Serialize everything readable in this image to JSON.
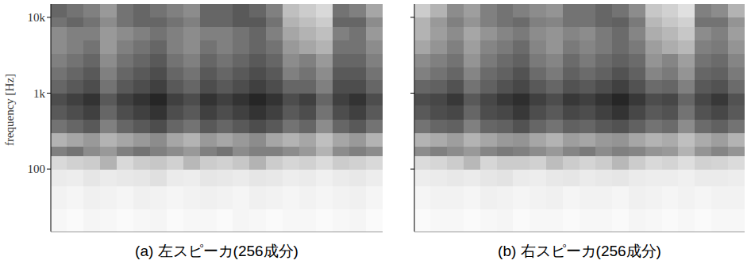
{
  "chart_data": [
    {
      "type": "heatmap",
      "title": "(a) 左スピーカ(256成分)",
      "y_label": "frequency [Hz]",
      "log": "y",
      "tick_labels": "y",
      "color": "#000000",
      "ylim": [
        15,
        15000
      ],
      "yticks": [
        100,
        {
          "value": 1000,
          "label": "1k"
        },
        {
          "value": 10000,
          "label": "10k"
        }
      ],
      "value_range": [
        0,
        1
      ],
      "y_bins": [
        15,
        30,
        60,
        100,
        150,
        200,
        300,
        450,
        700,
        1000,
        1500,
        2200,
        3300,
        5000,
        7500,
        10000,
        15000
      ],
      "cells": [
        [
          0.03,
          0.02,
          0.04,
          0.03,
          0.02,
          0.03,
          0.04,
          0.02,
          0.03,
          0.03,
          0.02,
          0.04,
          0.03,
          0.02,
          0.03,
          0.03,
          0.02,
          0.03,
          0.04,
          0.02
        ],
        [
          0.05,
          0.04,
          0.06,
          0.05,
          0.04,
          0.06,
          0.05,
          0.04,
          0.05,
          0.06,
          0.05,
          0.04,
          0.06,
          0.05,
          0.04,
          0.05,
          0.04,
          0.05,
          0.06,
          0.04
        ],
        [
          0.08,
          0.07,
          0.1,
          0.08,
          0.09,
          0.1,
          0.12,
          0.08,
          0.07,
          0.1,
          0.09,
          0.08,
          0.1,
          0.09,
          0.07,
          0.08,
          0.06,
          0.08,
          0.09,
          0.07
        ],
        [
          0.15,
          0.18,
          0.2,
          0.3,
          0.15,
          0.2,
          0.22,
          0.18,
          0.28,
          0.2,
          0.18,
          0.22,
          0.3,
          0.2,
          0.16,
          0.18,
          0.14,
          0.2,
          0.18,
          0.15
        ],
        [
          0.5,
          0.55,
          0.45,
          0.4,
          0.5,
          0.55,
          0.5,
          0.45,
          0.4,
          0.5,
          0.55,
          0.45,
          0.5,
          0.5,
          0.45,
          0.4,
          0.3,
          0.45,
          0.5,
          0.45
        ],
        [
          0.3,
          0.35,
          0.4,
          0.3,
          0.35,
          0.4,
          0.45,
          0.35,
          0.3,
          0.4,
          0.35,
          0.4,
          0.45,
          0.35,
          0.3,
          0.35,
          0.25,
          0.35,
          0.4,
          0.3
        ],
        [
          0.55,
          0.6,
          0.65,
          0.5,
          0.6,
          0.65,
          0.7,
          0.6,
          0.55,
          0.65,
          0.6,
          0.65,
          0.7,
          0.65,
          0.55,
          0.6,
          0.45,
          0.6,
          0.65,
          0.55
        ],
        [
          0.65,
          0.7,
          0.75,
          0.6,
          0.7,
          0.75,
          0.8,
          0.7,
          0.65,
          0.75,
          0.7,
          0.75,
          0.8,
          0.75,
          0.65,
          0.7,
          0.55,
          0.7,
          0.75,
          0.65
        ],
        [
          0.7,
          0.75,
          0.8,
          0.65,
          0.75,
          0.8,
          0.85,
          0.75,
          0.7,
          0.8,
          0.75,
          0.8,
          0.85,
          0.8,
          0.7,
          0.75,
          0.6,
          0.75,
          0.8,
          0.7
        ],
        [
          0.6,
          0.65,
          0.7,
          0.55,
          0.65,
          0.7,
          0.75,
          0.65,
          0.6,
          0.7,
          0.65,
          0.7,
          0.75,
          0.7,
          0.6,
          0.6,
          0.5,
          0.7,
          0.7,
          0.6
        ],
        [
          0.55,
          0.6,
          0.65,
          0.5,
          0.6,
          0.65,
          0.7,
          0.6,
          0.55,
          0.65,
          0.6,
          0.65,
          0.7,
          0.65,
          0.5,
          0.55,
          0.45,
          0.65,
          0.65,
          0.55
        ],
        [
          0.5,
          0.55,
          0.6,
          0.45,
          0.55,
          0.6,
          0.65,
          0.55,
          0.5,
          0.6,
          0.55,
          0.6,
          0.65,
          0.6,
          0.45,
          0.5,
          0.4,
          0.6,
          0.6,
          0.5
        ],
        [
          0.45,
          0.5,
          0.55,
          0.4,
          0.5,
          0.55,
          0.6,
          0.5,
          0.45,
          0.55,
          0.5,
          0.55,
          0.6,
          0.55,
          0.4,
          0.35,
          0.3,
          0.55,
          0.55,
          0.45
        ],
        [
          0.45,
          0.5,
          0.5,
          0.4,
          0.45,
          0.5,
          0.55,
          0.5,
          0.45,
          0.5,
          0.5,
          0.55,
          0.6,
          0.5,
          0.35,
          0.3,
          0.25,
          0.5,
          0.55,
          0.4
        ],
        [
          0.55,
          0.6,
          0.55,
          0.45,
          0.55,
          0.6,
          0.6,
          0.55,
          0.5,
          0.6,
          0.6,
          0.65,
          0.65,
          0.55,
          0.3,
          0.25,
          0.2,
          0.6,
          0.6,
          0.45
        ],
        [
          0.6,
          0.55,
          0.5,
          0.4,
          0.55,
          0.6,
          0.55,
          0.5,
          0.45,
          0.6,
          0.6,
          0.65,
          0.6,
          0.5,
          0.25,
          0.2,
          0.15,
          0.55,
          0.5,
          0.35
        ]
      ]
    },
    {
      "type": "heatmap",
      "title": "(b) 右スピーカ(256成分)",
      "log": "y",
      "tick_labels": false,
      "color": "#000000",
      "ylim": [
        15,
        15000
      ],
      "yticks": [
        100,
        1000,
        10000
      ],
      "value_range": [
        0,
        1
      ],
      "y_bins": [
        15,
        30,
        60,
        100,
        150,
        200,
        300,
        450,
        700,
        1000,
        1500,
        2200,
        3300,
        5000,
        7500,
        10000,
        15000
      ],
      "cells": [
        [
          0.02,
          0.03,
          0.03,
          0.02,
          0.03,
          0.04,
          0.02,
          0.03,
          0.03,
          0.02,
          0.03,
          0.03,
          0.02,
          0.04,
          0.03,
          0.02,
          0.03,
          0.02,
          0.03,
          0.03
        ],
        [
          0.04,
          0.05,
          0.05,
          0.04,
          0.06,
          0.05,
          0.04,
          0.05,
          0.06,
          0.04,
          0.05,
          0.05,
          0.04,
          0.06,
          0.05,
          0.04,
          0.05,
          0.04,
          0.05,
          0.05
        ],
        [
          0.07,
          0.08,
          0.09,
          0.08,
          0.1,
          0.11,
          0.08,
          0.07,
          0.09,
          0.1,
          0.08,
          0.09,
          0.1,
          0.08,
          0.07,
          0.07,
          0.06,
          0.08,
          0.08,
          0.07
        ],
        [
          0.14,
          0.16,
          0.2,
          0.28,
          0.16,
          0.2,
          0.2,
          0.18,
          0.26,
          0.2,
          0.17,
          0.2,
          0.28,
          0.2,
          0.15,
          0.17,
          0.13,
          0.18,
          0.17,
          0.14
        ],
        [
          0.45,
          0.5,
          0.45,
          0.4,
          0.48,
          0.52,
          0.5,
          0.45,
          0.4,
          0.48,
          0.52,
          0.45,
          0.5,
          0.48,
          0.42,
          0.4,
          0.3,
          0.42,
          0.48,
          0.42
        ],
        [
          0.3,
          0.33,
          0.38,
          0.3,
          0.35,
          0.4,
          0.42,
          0.35,
          0.3,
          0.38,
          0.35,
          0.4,
          0.42,
          0.35,
          0.3,
          0.33,
          0.25,
          0.33,
          0.38,
          0.3
        ],
        [
          0.55,
          0.6,
          0.62,
          0.5,
          0.6,
          0.62,
          0.68,
          0.6,
          0.55,
          0.62,
          0.6,
          0.65,
          0.68,
          0.62,
          0.55,
          0.58,
          0.45,
          0.58,
          0.62,
          0.55
        ],
        [
          0.65,
          0.7,
          0.72,
          0.6,
          0.7,
          0.72,
          0.78,
          0.7,
          0.65,
          0.72,
          0.7,
          0.75,
          0.8,
          0.72,
          0.65,
          0.68,
          0.55,
          0.68,
          0.72,
          0.65
        ],
        [
          0.7,
          0.72,
          0.78,
          0.65,
          0.72,
          0.78,
          0.82,
          0.75,
          0.7,
          0.78,
          0.75,
          0.8,
          0.85,
          0.78,
          0.7,
          0.72,
          0.6,
          0.72,
          0.78,
          0.68
        ],
        [
          0.6,
          0.62,
          0.68,
          0.55,
          0.62,
          0.68,
          0.72,
          0.65,
          0.6,
          0.68,
          0.65,
          0.7,
          0.75,
          0.68,
          0.58,
          0.6,
          0.5,
          0.65,
          0.68,
          0.58
        ],
        [
          0.5,
          0.55,
          0.6,
          0.48,
          0.58,
          0.62,
          0.68,
          0.58,
          0.52,
          0.62,
          0.58,
          0.62,
          0.68,
          0.62,
          0.48,
          0.52,
          0.42,
          0.6,
          0.62,
          0.52
        ],
        [
          0.45,
          0.5,
          0.55,
          0.42,
          0.52,
          0.58,
          0.62,
          0.52,
          0.48,
          0.58,
          0.52,
          0.58,
          0.62,
          0.58,
          0.42,
          0.48,
          0.38,
          0.55,
          0.58,
          0.48
        ],
        [
          0.35,
          0.42,
          0.5,
          0.38,
          0.48,
          0.52,
          0.58,
          0.48,
          0.42,
          0.52,
          0.48,
          0.52,
          0.58,
          0.52,
          0.38,
          0.32,
          0.28,
          0.5,
          0.52,
          0.42
        ],
        [
          0.3,
          0.38,
          0.45,
          0.35,
          0.42,
          0.48,
          0.52,
          0.45,
          0.42,
          0.48,
          0.45,
          0.52,
          0.58,
          0.48,
          0.32,
          0.28,
          0.22,
          0.45,
          0.5,
          0.38
        ],
        [
          0.3,
          0.4,
          0.5,
          0.42,
          0.5,
          0.55,
          0.58,
          0.5,
          0.48,
          0.55,
          0.55,
          0.6,
          0.62,
          0.52,
          0.28,
          0.22,
          0.18,
          0.55,
          0.55,
          0.42
        ],
        [
          0.2,
          0.3,
          0.45,
          0.38,
          0.5,
          0.55,
          0.5,
          0.45,
          0.42,
          0.55,
          0.55,
          0.6,
          0.55,
          0.45,
          0.22,
          0.18,
          0.12,
          0.5,
          0.45,
          0.3
        ]
      ]
    }
  ]
}
